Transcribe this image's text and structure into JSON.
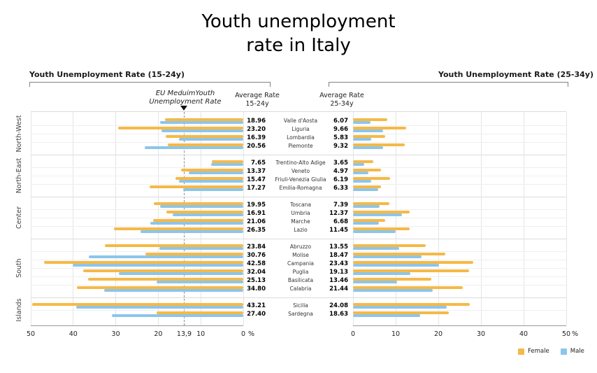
{
  "title": {
    "line1": "Youth unemployment",
    "line2": "rate in Italy"
  },
  "left_chart": {
    "header": "Youth Unemployment Rate (15-24y)",
    "avg_header_line1": "Average Rate",
    "avg_header_line2": "15-24y"
  },
  "right_chart": {
    "header": "Youth Unemployment Rate (25-34y)",
    "avg_header_line1": "Average Rate",
    "avg_header_line2": "25-34y"
  },
  "annotation": {
    "line1": "EU MeduimYouth",
    "line2": "Unemployment Rate",
    "marker": "triangle-down-icon"
  },
  "legend": [
    {
      "label": "Female",
      "color": "#F5B946"
    },
    {
      "label": "Male",
      "color": "#8CC5EB"
    }
  ],
  "colors": {
    "female": "#F5B946",
    "male": "#8CC5EB",
    "gridline": "#E5E5E5",
    "group_separator": "#DCDCDC",
    "axis_line": "#9A9A9A",
    "eu_dashed_line": "#8A8A8A"
  },
  "chart_data": {
    "type": "bar",
    "subtype": "butterfly-horizontal-grouped",
    "unit": "%",
    "series_names": [
      "Female",
      "Male"
    ],
    "left": {
      "title": "Youth Unemployment Rate (15-24y)",
      "range": [
        0,
        50
      ],
      "direction": "right-to-left"
    },
    "right": {
      "title": "Youth Unemployment Rate (25-34y)",
      "range": [
        0,
        50
      ],
      "direction": "left-to-right"
    },
    "eu_medium_rate": 13.9,
    "left_axis_ticks": [
      {
        "value": 50,
        "label": "50",
        "grid": true
      },
      {
        "value": 40,
        "label": "40",
        "grid": true
      },
      {
        "value": 30,
        "label": "30",
        "grid": true
      },
      {
        "value": 20,
        "label": "20",
        "grid": true
      },
      {
        "value": 13.9,
        "label": "13,9",
        "grid": false
      },
      {
        "value": 10,
        "label": "10",
        "grid": true
      },
      {
        "value": 0,
        "label": "0",
        "grid": true
      }
    ],
    "right_axis_ticks": [
      {
        "value": 0,
        "label": "0",
        "grid": true
      },
      {
        "value": 10,
        "label": "10",
        "grid": true
      },
      {
        "value": 20,
        "label": "20",
        "grid": true
      },
      {
        "value": 30,
        "label": "30",
        "grid": true
      },
      {
        "value": 40,
        "label": "40",
        "grid": true
      },
      {
        "value": 50,
        "label": "50",
        "grid": true
      }
    ],
    "groups": [
      {
        "label": "North-West",
        "regions": [
          {
            "name": "Valle d'Aosta",
            "avg_15_24": "18.96",
            "female_15_24": 18.5,
            "male_15_24": 19.6,
            "avg_25_34": "6.07",
            "female_25_34": 8.1,
            "male_25_34": 4.1
          },
          {
            "name": "Liguria",
            "avg_15_24": "23.20",
            "female_15_24": 29.5,
            "male_15_24": 19.3,
            "avg_25_34": "9.66",
            "female_25_34": 12.5,
            "male_25_34": 7.1
          },
          {
            "name": "Lombardia",
            "avg_15_24": "16.39",
            "female_15_24": 18.3,
            "male_15_24": 15.2,
            "avg_25_34": "5.83",
            "female_25_34": 7.5,
            "male_25_34": 4.3
          },
          {
            "name": "Piemonte",
            "avg_15_24": "20.56",
            "female_15_24": 17.8,
            "male_15_24": 23.2,
            "avg_25_34": "9.32",
            "female_25_34": 12.1,
            "male_25_34": 7.0
          }
        ]
      },
      {
        "label": "North-East",
        "regions": [
          {
            "name": "Trentino-Alto Adige",
            "avg_15_24": "7.65",
            "female_15_24": 7.4,
            "male_15_24": 7.6,
            "avg_25_34": "3.65",
            "female_25_34": 4.8,
            "male_25_34": 2.6
          },
          {
            "name": "Veneto",
            "avg_15_24": "13.37",
            "female_15_24": 14.6,
            "male_15_24": 12.8,
            "avg_25_34": "4.97",
            "female_25_34": 6.5,
            "male_25_34": 3.6
          },
          {
            "name": "Friuli-Venezia Giulia",
            "avg_15_24": "15.47",
            "female_15_24": 16.0,
            "male_15_24": 15.2,
            "avg_25_34": "6.19",
            "female_25_34": 8.7,
            "male_25_34": 4.3
          },
          {
            "name": "Emilia-Romagna",
            "avg_15_24": "17.27",
            "female_15_24": 22.0,
            "male_15_24": 14.2,
            "avg_25_34": "6.33",
            "female_25_34": 6.6,
            "male_25_34": 5.9
          }
        ]
      },
      {
        "label": "Center",
        "regions": [
          {
            "name": "Toscana",
            "avg_15_24": "19.95",
            "female_15_24": 21.0,
            "male_15_24": 19.6,
            "avg_25_34": "7.39",
            "female_25_34": 8.6,
            "male_25_34": 6.2
          },
          {
            "name": "Umbria",
            "avg_15_24": "16.91",
            "female_15_24": 18.1,
            "male_15_24": 16.6,
            "avg_25_34": "12.37",
            "female_25_34": 13.2,
            "male_25_34": 11.5
          },
          {
            "name": "Marche",
            "avg_15_24": "21.06",
            "female_15_24": 21.2,
            "male_15_24": 21.8,
            "avg_25_34": "6.68",
            "female_25_34": 7.5,
            "male_25_34": 6.1
          },
          {
            "name": "Lazio",
            "avg_15_24": "26.35",
            "female_15_24": 30.4,
            "male_15_24": 24.1,
            "avg_25_34": "11.45",
            "female_25_34": 13.2,
            "male_25_34": 10.0
          }
        ]
      },
      {
        "label": "South",
        "regions": [
          {
            "name": "Abruzzo",
            "avg_15_24": "23.84",
            "female_15_24": 32.5,
            "male_15_24": 19.8,
            "avg_25_34": "13.55",
            "female_25_34": 17.0,
            "male_25_34": 10.9
          },
          {
            "name": "Molise",
            "avg_15_24": "30.76",
            "female_15_24": 23.1,
            "male_15_24": 36.4,
            "avg_25_34": "18.47",
            "female_25_34": 21.6,
            "male_25_34": 16.0
          },
          {
            "name": "Campania",
            "avg_15_24": "42.58",
            "female_15_24": 46.9,
            "male_15_24": 40.1,
            "avg_25_34": "23.43",
            "female_25_34": 28.2,
            "male_25_34": 20.2
          },
          {
            "name": "Puglia",
            "avg_15_24": "32.04",
            "female_15_24": 37.6,
            "male_15_24": 29.2,
            "avg_25_34": "19.13",
            "female_25_34": 27.2,
            "male_25_34": 13.5
          },
          {
            "name": "Basilicata",
            "avg_15_24": "25.13",
            "female_15_24": 36.5,
            "male_15_24": 20.4,
            "avg_25_34": "13.46",
            "female_25_34": 18.4,
            "male_25_34": 10.3
          },
          {
            "name": "Calabria",
            "avg_15_24": "34.80",
            "female_15_24": 39.1,
            "male_15_24": 32.8,
            "avg_25_34": "21.44",
            "female_25_34": 25.8,
            "male_25_34": 18.7
          }
        ]
      },
      {
        "label": "Islands",
        "regions": [
          {
            "name": "Sicilia",
            "avg_15_24": "43.21",
            "female_15_24": 49.6,
            "male_15_24": 39.3,
            "avg_25_34": "24.08",
            "female_25_34": 27.4,
            "male_25_34": 21.9
          },
          {
            "name": "Sardegna",
            "avg_15_24": "27.40",
            "female_15_24": 20.4,
            "male_15_24": 31.0,
            "avg_25_34": "18.63",
            "female_25_34": 22.4,
            "male_25_34": 15.7
          }
        ]
      }
    ]
  }
}
